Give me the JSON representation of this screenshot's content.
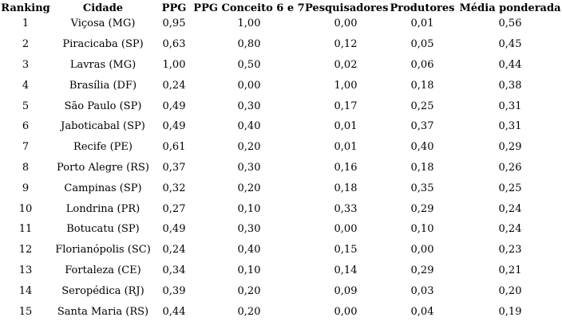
{
  "page": {
    "background_color": "#ffffff",
    "text_color": "#000000"
  },
  "table": {
    "columns": [
      "Ranking",
      "Cidade",
      "PPG",
      "PPG Conceito 6 e 7",
      "Pesquisadores",
      "Produtores",
      "Média ponderada"
    ],
    "rows": [
      [
        "1",
        "Viçosa (MG)",
        "0,95",
        "1,00",
        "0,00",
        "0,01",
        "0,56"
      ],
      [
        "2",
        "Piracicaba (SP)",
        "0,63",
        "0,80",
        "0,12",
        "0,05",
        "0,45"
      ],
      [
        "3",
        "Lavras (MG)",
        "1,00",
        "0,50",
        "0,02",
        "0,06",
        "0,44"
      ],
      [
        "4",
        "Brasília (DF)",
        "0,24",
        "0,00",
        "1,00",
        "0,18",
        "0,38"
      ],
      [
        "5",
        "São Paulo (SP)",
        "0,49",
        "0,30",
        "0,17",
        "0,25",
        "0,31"
      ],
      [
        "6",
        "Jaboticabal (SP)",
        "0,49",
        "0,40",
        "0,01",
        "0,37",
        "0,31"
      ],
      [
        "7",
        "Recife (PE)",
        "0,61",
        "0,20",
        "0,01",
        "0,40",
        "0,29"
      ],
      [
        "8",
        "Porto Alegre (RS)",
        "0,37",
        "0,30",
        "0,16",
        "0,18",
        "0,26"
      ],
      [
        "9",
        "Campinas (SP)",
        "0,32",
        "0,20",
        "0,18",
        "0,35",
        "0,25"
      ],
      [
        "10",
        "Londrina (PR)",
        "0,27",
        "0,10",
        "0,33",
        "0,29",
        "0,24"
      ],
      [
        "11",
        "Botucatu (SP)",
        "0,49",
        "0,30",
        "0,00",
        "0,10",
        "0,24"
      ],
      [
        "12",
        "Florianópolis (SC)",
        "0,24",
        "0,40",
        "0,15",
        "0,00",
        "0,23"
      ],
      [
        "13",
        "Fortaleza (CE)",
        "0,34",
        "0,10",
        "0,14",
        "0,29",
        "0,21"
      ],
      [
        "14",
        "Seropédica (RJ)",
        "0,39",
        "0,20",
        "0,09",
        "0,03",
        "0,20"
      ],
      [
        "15",
        "Santa Maria (RS)",
        "0,44",
        "0,20",
        "0,00",
        "0,04",
        "0,19"
      ]
    ]
  }
}
